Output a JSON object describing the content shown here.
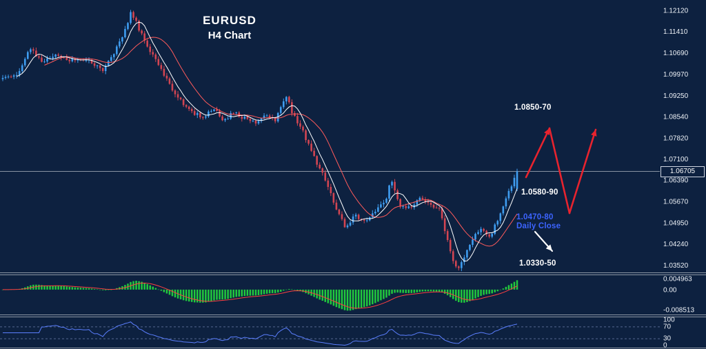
{
  "header": {
    "symbol": "EURUSD",
    "timeframe": "H4 Chart"
  },
  "price_scale": {
    "labels": [
      "1.12120",
      "1.11410",
      "1.10690",
      "1.09970",
      "1.09250",
      "1.08540",
      "1.07820",
      "1.07100",
      "1.06390",
      "1.05670",
      "1.04950",
      "1.04240",
      "1.03520"
    ],
    "current": "1.06705"
  },
  "macd_scale": {
    "labels": [
      "0.004963",
      "0.00",
      "-0.008513"
    ]
  },
  "rsi_scale": {
    "labels": [
      "100",
      "70",
      "30",
      "0"
    ]
  },
  "annotations": {
    "resistance": "1.0850-70",
    "support_mid": "1.0580-90",
    "daily_close_level": "1.0470-80",
    "daily_close_label": "Daily Close",
    "support_low": "1.0330-50"
  },
  "chart": {
    "colors": {
      "background": "#0d2140",
      "up_candle": "#3f9df0",
      "down_candle": "#d24552",
      "ma_fast": "#ffffff",
      "ma_slow": "#ff5b5b",
      "histogram": "#21c93d",
      "signal_line": "#ff4040",
      "rsi_line": "#5b7fff",
      "level_dashed": "#55688f",
      "separator": "#8e98a6",
      "axis_text": "#eef2f7",
      "current_price_line": "#b0b8c4",
      "arrow_red": "#e8232e",
      "arrow_white": "#ffffff",
      "annotation_blue": "#3c64ff"
    }
  },
  "chart_data": {
    "type": "candlestick",
    "symbol": "EURUSD",
    "timeframe": "H4",
    "title": "EURUSD H4 Chart",
    "y_axis": {
      "min": 1.0352,
      "max": 1.1212,
      "ticks": [
        1.1212,
        1.1141,
        1.1069,
        1.0997,
        1.0925,
        1.0854,
        1.0782,
        1.071,
        1.0639,
        1.0567,
        1.0495,
        1.0424,
        1.0352
      ]
    },
    "x_axis": {
      "time_labels_visible": false
    },
    "current_price": 1.06705,
    "candles_count": 186,
    "key_levels": [
      {
        "label": "1.0850-70",
        "role": "resistance-target"
      },
      {
        "label": "1.0580-90",
        "role": "broken-resistance"
      },
      {
        "label": "1.0470-80",
        "role": "daily-close-support"
      },
      {
        "label": "1.0330-50",
        "role": "major-support"
      }
    ],
    "price_path": [
      [
        0.0,
        1.099
      ],
      [
        0.03,
        1.1
      ],
      [
        0.055,
        1.109
      ],
      [
        0.075,
        1.104
      ],
      [
        0.105,
        1.1065
      ],
      [
        0.135,
        1.1045
      ],
      [
        0.165,
        1.105
      ],
      [
        0.195,
        1.101
      ],
      [
        0.215,
        1.1065
      ],
      [
        0.235,
        1.114
      ],
      [
        0.25,
        1.121
      ],
      [
        0.268,
        1.114
      ],
      [
        0.285,
        1.1075
      ],
      [
        0.305,
        1.103
      ],
      [
        0.325,
        1.096
      ],
      [
        0.345,
        1.0915
      ],
      [
        0.365,
        1.087
      ],
      [
        0.39,
        1.0855
      ],
      [
        0.41,
        1.088
      ],
      [
        0.43,
        1.0845
      ],
      [
        0.45,
        1.087
      ],
      [
        0.47,
        1.085
      ],
      [
        0.49,
        1.0835
      ],
      [
        0.51,
        1.086
      ],
      [
        0.53,
        1.0845
      ],
      [
        0.55,
        1.093
      ],
      [
        0.565,
        1.086
      ],
      [
        0.585,
        1.08
      ],
      [
        0.605,
        1.072
      ],
      [
        0.625,
        1.065
      ],
      [
        0.645,
        1.056
      ],
      [
        0.665,
        1.0485
      ],
      [
        0.685,
        1.052
      ],
      [
        0.705,
        1.0505
      ],
      [
        0.725,
        1.054
      ],
      [
        0.745,
        1.0575
      ],
      [
        0.755,
        1.064
      ],
      [
        0.77,
        1.056
      ],
      [
        0.79,
        1.0545
      ],
      [
        0.81,
        1.058
      ],
      [
        0.83,
        1.0555
      ],
      [
        0.85,
        1.054
      ],
      [
        0.862,
        1.045
      ],
      [
        0.875,
        1.037
      ],
      [
        0.885,
        1.0338
      ],
      [
        0.9,
        1.039
      ],
      [
        0.915,
        1.045
      ],
      [
        0.93,
        1.048
      ],
      [
        0.945,
        1.044
      ],
      [
        0.96,
        1.05
      ],
      [
        0.975,
        1.056
      ],
      [
        1.0,
        1.0668
      ]
    ],
    "indicators": {
      "macd": {
        "panel": "middle",
        "histogram_color": "green",
        "signal_color": "red",
        "scale_max": 0.004963,
        "scale_min": -0.008513
      },
      "rsi": {
        "panel": "bottom",
        "line_color": "blue",
        "levels": [
          100,
          70,
          30,
          0
        ],
        "dashed_levels": [
          70,
          30
        ]
      }
    },
    "projection_arrows": [
      {
        "color": "red",
        "from": [
          763,
          257
        ],
        "to": [
          797,
          186
        ],
        "head": true
      },
      {
        "color": "red",
        "from": [
          797,
          186
        ],
        "to": [
          826,
          309
        ],
        "head": false
      },
      {
        "color": "red",
        "from": [
          826,
          309
        ],
        "to": [
          864,
          188
        ],
        "head": true
      },
      {
        "color": "white",
        "from": [
          776,
          336
        ],
        "to": [
          801,
          364
        ],
        "head": true
      }
    ]
  }
}
